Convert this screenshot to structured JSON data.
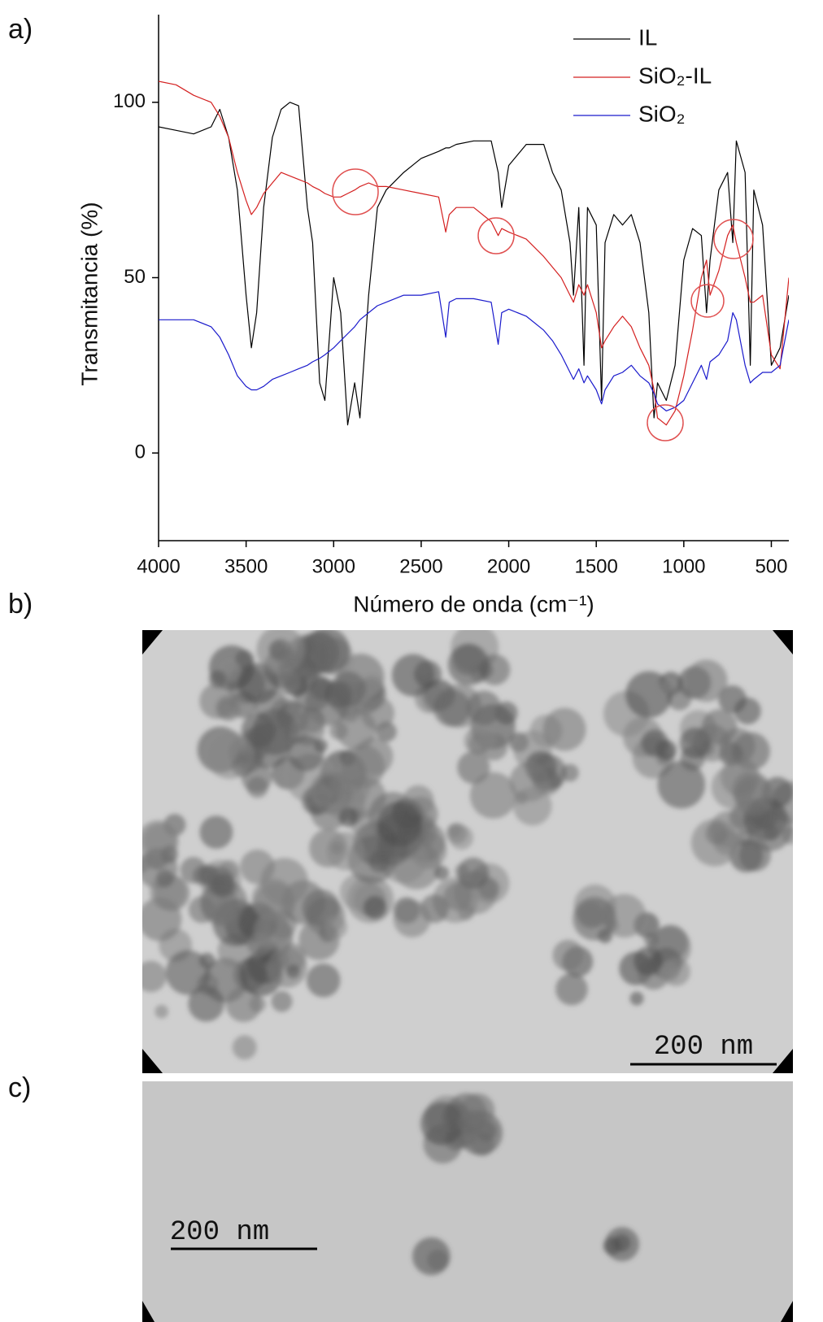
{
  "chart_data": {
    "type": "line",
    "panel_label": "a)",
    "xlabel": "Número de onda (cm⁻¹)",
    "ylabel": "Transmitancia (%)",
    "xlim": [
      4000,
      400
    ],
    "ylim": [
      -25,
      125
    ],
    "xticks": [
      4000,
      3500,
      3000,
      2500,
      2000,
      1500,
      1000,
      500
    ],
    "yticks": [
      0,
      50,
      100
    ],
    "legend": "upper right",
    "x": [
      4000,
      3900,
      3800,
      3700,
      3650,
      3600,
      3550,
      3500,
      3470,
      3440,
      3400,
      3350,
      3300,
      3250,
      3200,
      3150,
      3120,
      3080,
      3050,
      3000,
      2960,
      2920,
      2880,
      2850,
      2800,
      2750,
      2700,
      2600,
      2500,
      2400,
      2360,
      2340,
      2300,
      2200,
      2100,
      2060,
      2040,
      2000,
      1900,
      1800,
      1750,
      1700,
      1650,
      1630,
      1600,
      1570,
      1550,
      1500,
      1470,
      1450,
      1400,
      1350,
      1300,
      1250,
      1200,
      1170,
      1150,
      1100,
      1050,
      1000,
      950,
      900,
      870,
      850,
      800,
      750,
      720,
      700,
      650,
      620,
      600,
      550,
      500,
      450,
      400
    ],
    "series": [
      {
        "name": "IL",
        "color": "#000000",
        "values": [
          93,
          92,
          91,
          93,
          98,
          90,
          75,
          45,
          30,
          40,
          70,
          90,
          98,
          100,
          99,
          70,
          60,
          20,
          15,
          50,
          40,
          8,
          20,
          10,
          45,
          70,
          75,
          80,
          84,
          86,
          87,
          87,
          88,
          89,
          89,
          80,
          70,
          82,
          88,
          88,
          80,
          75,
          60,
          45,
          70,
          25,
          70,
          65,
          15,
          60,
          68,
          65,
          68,
          60,
          40,
          10,
          20,
          15,
          25,
          55,
          64,
          62,
          40,
          55,
          75,
          80,
          60,
          89,
          80,
          25,
          75,
          65,
          25,
          30,
          45
        ]
      },
      {
        "name": "SiO₂-IL",
        "color": "#d42020",
        "values": [
          106,
          105,
          102,
          100,
          96,
          90,
          80,
          72,
          68,
          70,
          74,
          77,
          80,
          79,
          78,
          77,
          76,
          75,
          74,
          73,
          73,
          74,
          75,
          76,
          77,
          76,
          76,
          75,
          74,
          73,
          63,
          68,
          70,
          70,
          66,
          62,
          64,
          63,
          61,
          56,
          53,
          50,
          45,
          43,
          48,
          45,
          48,
          40,
          30,
          32,
          36,
          39,
          36,
          30,
          25,
          18,
          10,
          8,
          12,
          22,
          35,
          50,
          55,
          45,
          52,
          62,
          65,
          60,
          50,
          43,
          43,
          45,
          28,
          24,
          50
        ]
      },
      {
        "name": "SiO₂",
        "color": "#1a1acc",
        "values": [
          38,
          38,
          38,
          36,
          33,
          28,
          22,
          19,
          18,
          18,
          19,
          21,
          22,
          23,
          24,
          25,
          26,
          27,
          28,
          30,
          32,
          34,
          36,
          38,
          40,
          42,
          43,
          45,
          45,
          46,
          33,
          43,
          44,
          44,
          43,
          31,
          40,
          41,
          39,
          35,
          32,
          28,
          23,
          21,
          24,
          20,
          22,
          18,
          14,
          18,
          22,
          23,
          25,
          22,
          20,
          17,
          14,
          12,
          13,
          15,
          20,
          25,
          21,
          26,
          28,
          32,
          40,
          38,
          25,
          20,
          21,
          23,
          23,
          25,
          38
        ]
      }
    ]
  },
  "images": [
    {
      "label": "b)",
      "scale_bar": "200 nm"
    },
    {
      "label": "c)",
      "scale_bar": "200 nm"
    }
  ]
}
